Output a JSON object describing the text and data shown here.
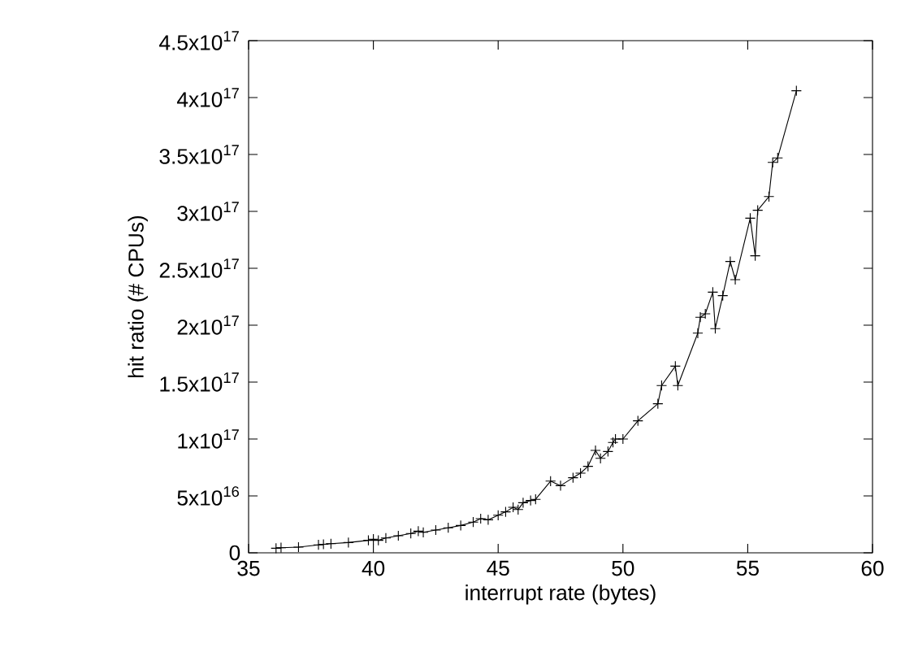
{
  "chart_data": {
    "type": "line",
    "xlabel": "interrupt rate (bytes)",
    "ylabel": "hit ratio (# CPUs)",
    "marker": "cross",
    "line_style": "solid",
    "color": "#000000",
    "xlim": [
      35,
      60
    ],
    "xticks": [
      35,
      40,
      45,
      50,
      55,
      60
    ],
    "ylim": [
      0,
      4.5e+17
    ],
    "yticks": [
      0,
      {
        "value": 5e+16,
        "label": "5x10$^{16}$"
      },
      {
        "value": 1e+17,
        "label": "1x10$^{17}$"
      },
      {
        "value": 1.5e+17,
        "label": "1.5x10$^{17}$"
      },
      {
        "value": 2e+17,
        "label": "2x10$^{17}$"
      },
      {
        "value": 2.5e+17,
        "label": "2.5x10$^{17}$"
      },
      {
        "value": 3e+17,
        "label": "3x10$^{17}$"
      },
      {
        "value": 3.5e+17,
        "label": "3.5x10$^{17}$"
      },
      {
        "value": 4e+17,
        "label": "4x10$^{17}$"
      },
      {
        "value": 4.5e+17,
        "label": "4.5x10$^{17}$"
      }
    ],
    "x": [
      36.1,
      36.3,
      37.0,
      37.8,
      38.0,
      38.3,
      39.0,
      39.8,
      40.0,
      40.2,
      40.5,
      41.0,
      41.5,
      41.8,
      42.0,
      42.5,
      43.0,
      43.5,
      44.0,
      44.3,
      44.6,
      45.0,
      45.3,
      45.6,
      45.8,
      46.0,
      46.3,
      46.5,
      47.1,
      47.5,
      48.0,
      48.3,
      48.6,
      48.9,
      49.1,
      49.4,
      49.6,
      49.7,
      50.0,
      50.6,
      51.4,
      51.55,
      52.1,
      52.2,
      53.0,
      53.1,
      53.3,
      53.6,
      53.7,
      54.0,
      54.3,
      54.5,
      55.1,
      55.3,
      55.4,
      55.85,
      56.0,
      56.2,
      56.95
    ],
    "values": [
      4000000000000000.0,
      4500000000000000.0,
      5000000000000000.0,
      7000000000000000.0,
      7500000000000000.0,
      8000000000000000.0,
      9000000000000000.0,
      1.1e+16,
      1.2e+16,
      1.1e+16,
      1.3e+16,
      1.5e+16,
      1.7e+16,
      1.9e+16,
      1.8e+16,
      2e+16,
      2.2e+16,
      2.4e+16,
      2.7e+16,
      3e+16,
      2.9e+16,
      3.3e+16,
      3.6e+16,
      4e+16,
      3.8e+16,
      4.4e+16,
      4.6e+16,
      4.7e+16,
      6.3e+16,
      5.9e+16,
      6.6e+16,
      7e+16,
      7.6e+16,
      9e+16,
      8.3e+16,
      8.9e+16,
      9.7e+16,
      1e+17,
      1e+17,
      1.16e+17,
      1.31e+17,
      1.47e+17,
      1.64e+17,
      1.47e+17,
      1.93e+17,
      2.07e+17,
      2.1e+17,
      2.29e+17,
      1.97e+17,
      2.26e+17,
      2.56e+17,
      2.4e+17,
      2.94e+17,
      2.61e+17,
      3.01e+17,
      3.13e+17,
      3.43e+17,
      3.47e+17,
      4.06e+17
    ]
  }
}
